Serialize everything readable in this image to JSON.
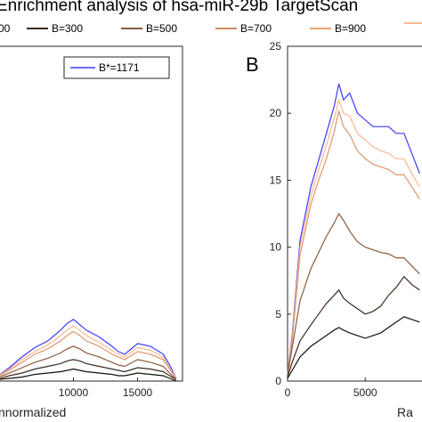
{
  "figure": {
    "title": "Enrichment analysis of hsa-miR-29b TargetScan"
  },
  "top_legend": [
    {
      "label": "00",
      "color": "#111111"
    },
    {
      "label": "B=300",
      "color": "#3d2a20"
    },
    {
      "label": "B=500",
      "color": "#8a5a3c"
    },
    {
      "label": "B=700",
      "color": "#c98a62"
    },
    {
      "label": "B=900",
      "color": "#f0a070"
    },
    {
      "label": "",
      "color": "#f7b890"
    }
  ],
  "chart_data": [
    {
      "panel": "",
      "type": "line",
      "xlabel": "nnormalized",
      "xticks": [
        10000,
        15000
      ],
      "xlim": [
        4000,
        18500
      ],
      "ylim": [
        0,
        25
      ],
      "legend": {
        "label": "B*=1171",
        "color": "#3a3aff",
        "position": "top-right"
      },
      "series": [
        {
          "name": "B*=1171",
          "color": "#3a3aff",
          "x": [
            4000,
            5000,
            6000,
            7000,
            8000,
            9000,
            9500,
            10000,
            10500,
            11000,
            12000,
            13000,
            13500,
            14000,
            15000,
            16000,
            17000,
            17500,
            18000
          ],
          "y": [
            0.3,
            1.0,
            1.8,
            2.5,
            3.0,
            3.8,
            4.3,
            4.6,
            4.2,
            3.8,
            3.3,
            2.6,
            2.2,
            2.0,
            2.8,
            2.6,
            2.0,
            1.2,
            0.2
          ]
        },
        {
          "name": "B=900",
          "color": "#f7b890",
          "x": [
            4000,
            5000,
            6000,
            7000,
            8000,
            9000,
            9500,
            10000,
            10500,
            11000,
            12000,
            13000,
            13500,
            14000,
            15000,
            16000,
            17000,
            17500,
            18000
          ],
          "y": [
            0.3,
            0.9,
            1.6,
            2.2,
            2.7,
            3.4,
            3.8,
            4.1,
            3.8,
            3.4,
            2.9,
            2.3,
            2.0,
            1.8,
            2.5,
            2.3,
            1.8,
            1.0,
            0.2
          ]
        },
        {
          "name": "B=700",
          "color": "#e0956a",
          "x": [
            4000,
            5000,
            6000,
            7000,
            8000,
            9000,
            9500,
            10000,
            10500,
            11000,
            12000,
            13000,
            13500,
            14000,
            15000,
            16000,
            17000,
            17500,
            18000
          ],
          "y": [
            0.3,
            0.8,
            1.4,
            2.0,
            2.4,
            3.0,
            3.4,
            3.7,
            3.4,
            3.0,
            2.6,
            2.0,
            1.8,
            1.6,
            2.2,
            2.0,
            1.6,
            0.9,
            0.2
          ]
        },
        {
          "name": "B=500",
          "color": "#8a5a3c",
          "x": [
            4000,
            5000,
            6000,
            7000,
            8000,
            9000,
            9500,
            10000,
            10500,
            11000,
            12000,
            13000,
            13500,
            14000,
            15000,
            16000,
            17000,
            17500,
            18000
          ],
          "y": [
            0.2,
            0.6,
            1.0,
            1.4,
            1.7,
            2.1,
            2.4,
            2.6,
            2.4,
            2.1,
            1.8,
            1.4,
            1.2,
            1.1,
            1.6,
            1.4,
            1.1,
            0.6,
            0.1
          ]
        },
        {
          "name": "B=300",
          "color": "#3d2a20",
          "x": [
            4000,
            5000,
            6000,
            7000,
            8000,
            9000,
            9500,
            10000,
            10500,
            11000,
            12000,
            13000,
            13500,
            14000,
            15000,
            16000,
            17000,
            17500,
            18000
          ],
          "y": [
            0.1,
            0.4,
            0.6,
            0.9,
            1.1,
            1.3,
            1.5,
            1.6,
            1.5,
            1.3,
            1.1,
            0.9,
            0.8,
            0.7,
            1.0,
            0.9,
            0.7,
            0.4,
            0.1
          ]
        },
        {
          "name": "",
          "color": "#111111",
          "x": [
            4000,
            5000,
            6000,
            7000,
            8000,
            9000,
            9500,
            10000,
            10500,
            11000,
            12000,
            13000,
            13500,
            14000,
            15000,
            16000,
            17000,
            17500,
            18000
          ],
          "y": [
            0.1,
            0.2,
            0.3,
            0.5,
            0.6,
            0.7,
            0.8,
            0.9,
            0.8,
            0.7,
            0.6,
            0.5,
            0.4,
            0.4,
            0.6,
            0.5,
            0.4,
            0.2,
            0.0
          ]
        }
      ]
    },
    {
      "panel": "B",
      "type": "line",
      "xlabel": "Ra",
      "xticks": [
        0,
        5000
      ],
      "yticks": [
        0,
        5,
        10,
        15,
        20,
        25
      ],
      "xlim": [
        0,
        9000
      ],
      "ylim": [
        0,
        25
      ],
      "series": [
        {
          "name": "B*=1171",
          "color": "#3a3aff",
          "x": [
            0,
            300,
            800,
            1500,
            2000,
            2500,
            3000,
            3300,
            3600,
            4000,
            4500,
            5000,
            5500,
            6000,
            6500,
            7000,
            7500,
            8000,
            8500
          ],
          "y": [
            0.5,
            3.5,
            10.5,
            14.5,
            16.5,
            18.5,
            20.5,
            22.2,
            21.0,
            21.5,
            20.0,
            19.5,
            19.0,
            19.0,
            19.0,
            18.5,
            18.5,
            17.0,
            15.5
          ]
        },
        {
          "name": "B=900",
          "color": "#f7b890",
          "x": [
            0,
            300,
            800,
            1500,
            2000,
            2500,
            3000,
            3300,
            3600,
            4000,
            4500,
            5000,
            5500,
            6000,
            6500,
            7000,
            7500,
            8000,
            8500
          ],
          "y": [
            0.5,
            3.3,
            10.0,
            13.8,
            15.8,
            17.6,
            19.6,
            21.0,
            20.0,
            19.8,
            18.5,
            18.0,
            17.5,
            17.2,
            17.0,
            16.6,
            16.6,
            15.5,
            14.5
          ]
        },
        {
          "name": "B=700",
          "color": "#e0956a",
          "x": [
            0,
            300,
            800,
            1500,
            2000,
            2500,
            3000,
            3300,
            3600,
            4000,
            4500,
            5000,
            5500,
            6000,
            6500,
            7000,
            7500,
            8000,
            8500
          ],
          "y": [
            0.5,
            3.0,
            9.4,
            13.2,
            15.0,
            16.6,
            18.6,
            20.2,
            19.0,
            18.4,
            17.2,
            16.6,
            16.2,
            16.0,
            15.8,
            15.4,
            15.4,
            14.5,
            13.6
          ]
        },
        {
          "name": "B=500",
          "color": "#8a5a3c",
          "x": [
            0,
            300,
            800,
            1500,
            2000,
            2500,
            3000,
            3300,
            3600,
            4000,
            4500,
            5000,
            5500,
            6000,
            6500,
            7000,
            7500,
            8000,
            8500
          ],
          "y": [
            0.4,
            2.5,
            6.0,
            8.4,
            9.6,
            10.8,
            11.8,
            12.5,
            12.0,
            11.2,
            10.4,
            10.0,
            9.8,
            9.6,
            9.5,
            9.2,
            9.2,
            8.6,
            8.0
          ]
        },
        {
          "name": "B=300",
          "color": "#3d2a20",
          "x": [
            0,
            300,
            800,
            1500,
            2000,
            2500,
            3000,
            3300,
            3600,
            4000,
            4500,
            5000,
            5500,
            6000,
            6500,
            7000,
            7500,
            8000,
            8500
          ],
          "y": [
            0.3,
            1.4,
            3.0,
            4.2,
            5.0,
            5.8,
            6.4,
            6.8,
            6.2,
            5.8,
            5.4,
            5.0,
            5.2,
            5.6,
            6.4,
            7.0,
            7.8,
            7.2,
            6.8
          ]
        },
        {
          "name": "",
          "color": "#111111",
          "x": [
            0,
            300,
            800,
            1500,
            2000,
            2500,
            3000,
            3300,
            3600,
            4000,
            4500,
            5000,
            5500,
            6000,
            6500,
            7000,
            7500,
            8000,
            8500
          ],
          "y": [
            0.2,
            0.8,
            1.8,
            2.6,
            3.0,
            3.4,
            3.8,
            4.0,
            3.8,
            3.6,
            3.4,
            3.2,
            3.4,
            3.6,
            4.0,
            4.4,
            4.8,
            4.6,
            4.4
          ]
        }
      ]
    }
  ]
}
